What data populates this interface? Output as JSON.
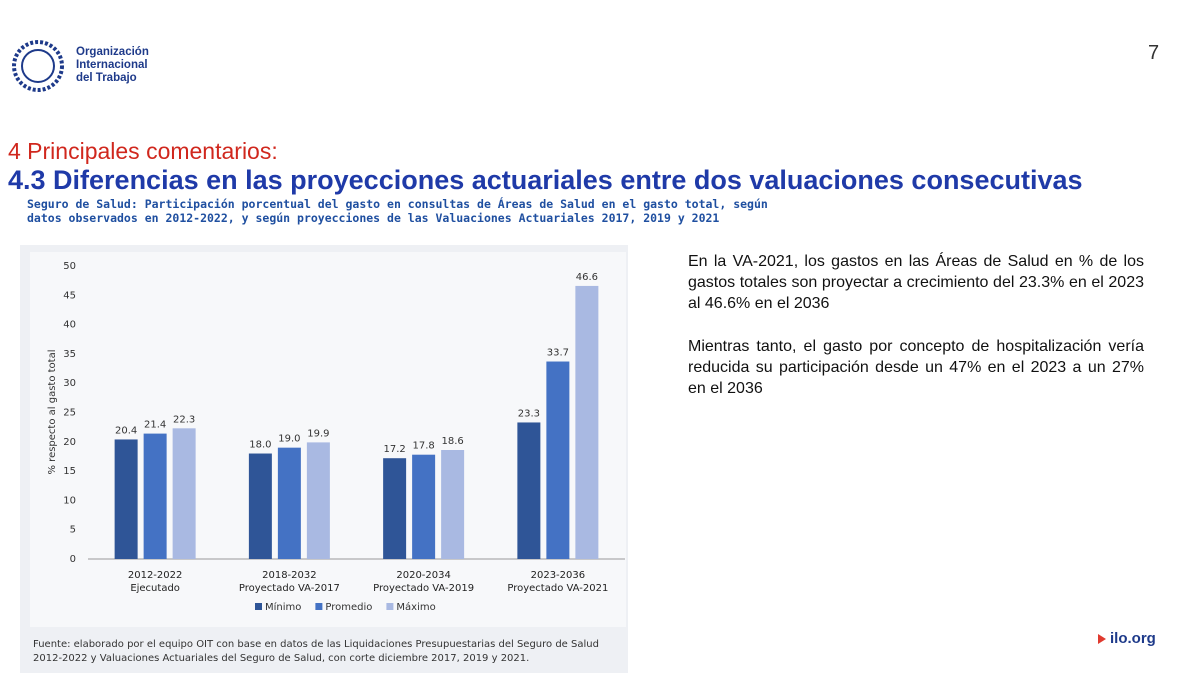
{
  "header": {
    "org_name": "Organización\nInternacional\ndel Trabajo",
    "page_number": "7"
  },
  "section": "4 Principales comentarios:",
  "heading": "4.3 Diferencias en las proyecciones actuariales entre dos valuaciones consecutivas",
  "chart_data": {
    "type": "bar",
    "title": "Seguro de Salud: Participación porcentual del gasto en consultas de Áreas de Salud en el gasto total, según datos observados en 2012-2022, y según proyecciones de las Valuaciones Actuariales 2017, 2019 y 2021",
    "ylabel": "% respecto al gasto total",
    "categories": [
      "2012-2022\nEjecutado",
      "2018-2032\nProyectado VA-2017",
      "2020-2034\nProyectado  VA-2019",
      "2023-2036\nProyectado VA-2021"
    ],
    "series": [
      {
        "name": "Mínimo",
        "color": "#2f5597",
        "values": [
          20.4,
          18.0,
          17.2,
          23.3
        ],
        "value_labels": [
          "20.4",
          "18.0",
          "17.2",
          "23.3"
        ]
      },
      {
        "name": "Promedio",
        "color": "#4472c4",
        "values": [
          21.4,
          19.0,
          17.8,
          33.7
        ],
        "value_labels": [
          "21.4",
          "19.0",
          "17.8",
          "33.7"
        ]
      },
      {
        "name": "Máximo",
        "color": "#a9b9e2",
        "values": [
          22.3,
          19.9,
          18.6,
          46.6
        ],
        "value_labels": [
          "22.3",
          "19.9",
          "18.6",
          "46.6"
        ]
      }
    ],
    "ylim": [
      0,
      50
    ],
    "yticks": [
      0,
      5,
      10,
      15,
      20,
      25,
      30,
      35,
      40,
      45,
      50
    ],
    "grid": false,
    "source": "Fuente: elaborado por el equipo OIT con base en datos de las Liquidaciones Presupuestarias del Seguro de Salud 2012-2022 y Valuaciones Actuariales del Seguro de Salud, con corte diciembre 2017, 2019 y 2021."
  },
  "paragraphs": [
    "En la VA-2021, los gastos en las Áreas de Salud en % de los gastos totales son proyectar a crecimiento del 23.3% en el 2023 al 46.6% en el 2036",
    "Mientras tanto, el gasto por concepto de hospitalización vería reducida su participación desde un 47% en el 2023 a un 27% en el 2036"
  ],
  "footer_link": "ilo.org"
}
